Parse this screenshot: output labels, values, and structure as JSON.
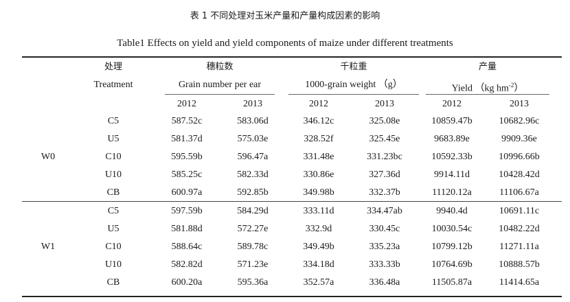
{
  "title_cn": "表 1  不同处理对玉米产量和产量构成因素的影响",
  "title_en": "Table1 Effects on yield and yield components of maize under different treatments",
  "headers": {
    "treatment_cn": "处理",
    "treatment_en": "Treatment",
    "grain_cn": "穗粒数",
    "grain_en": "Grain number per ear",
    "weight_cn": "千粒重",
    "weight_en": "1000-grain weight  （g）",
    "yield_cn": "产量",
    "yield_en_pre": "Yield  （kg hm",
    "yield_en_sup": "-2",
    "yield_en_post": "）"
  },
  "years": [
    "2012",
    "2013",
    "2012",
    "2013",
    "2012",
    "2013"
  ],
  "groups": [
    {
      "label": "W0",
      "rows": [
        {
          "treatment": "C5",
          "values": [
            "587.52c",
            "583.06d",
            "346.12c",
            "325.08e",
            "10859.47b",
            "10682.96c"
          ]
        },
        {
          "treatment": "U5",
          "values": [
            "581.37d",
            "575.03e",
            "328.52f",
            "325.45e",
            "9683.89e",
            "9909.36e"
          ]
        },
        {
          "treatment": "C10",
          "values": [
            "595.59b",
            "596.47a",
            "331.48e",
            "331.23bc",
            "10592.33b",
            "10996.66b"
          ]
        },
        {
          "treatment": "U10",
          "values": [
            "585.25c",
            "582.33d",
            "330.86e",
            "327.36d",
            "9914.11d",
            "10428.42d"
          ]
        },
        {
          "treatment": "CB",
          "values": [
            "600.97a",
            "592.85b",
            "349.98b",
            "332.37b",
            "11120.12a",
            "11106.67a"
          ]
        }
      ]
    },
    {
      "label": "W1",
      "rows": [
        {
          "treatment": "C5",
          "values": [
            "597.59b",
            "584.29d",
            "333.11d",
            "334.47ab",
            "9940.4d",
            "10691.11c"
          ]
        },
        {
          "treatment": "U5",
          "values": [
            "581.88d",
            "572.27e",
            "332.9d",
            "330.45c",
            "10030.54c",
            "10482.22d"
          ]
        },
        {
          "treatment": "C10",
          "values": [
            "588.64c",
            "589.78c",
            "349.49b",
            "335.23a",
            "10799.12b",
            "11271.11a"
          ]
        },
        {
          "treatment": "U10",
          "values": [
            "582.82d",
            "571.23e",
            "334.18d",
            "333.33b",
            "10764.69b",
            "10888.57b"
          ]
        },
        {
          "treatment": "CB",
          "values": [
            "600.20a",
            "595.36a",
            "352.57a",
            "336.48a",
            "11505.87a",
            "11414.65a"
          ]
        }
      ]
    }
  ]
}
